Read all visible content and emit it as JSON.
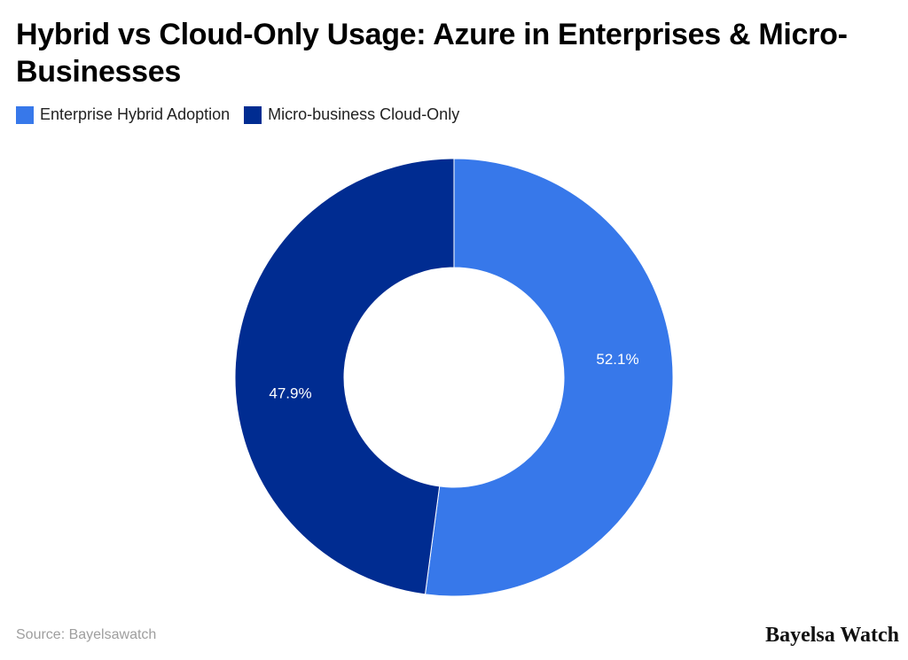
{
  "title": "Hybrid vs Cloud-Only Usage: Azure in Enterprises & Micro-Businesses",
  "legend": [
    {
      "label": "Enterprise Hybrid Adoption",
      "color": "#3778ea"
    },
    {
      "label": "Micro-business Cloud-Only",
      "color": "#002c91"
    }
  ],
  "source": "Source: Bayelsawatch",
  "brand": "Bayelsa Watch",
  "chart_data": {
    "type": "pie",
    "variant": "donut",
    "title": "Hybrid vs Cloud-Only Usage: Azure in Enterprises & Micro-Businesses",
    "categories": [
      "Enterprise Hybrid Adoption",
      "Micro-business Cloud-Only"
    ],
    "values": [
      52.1,
      47.9
    ],
    "data_labels": [
      "52.1%",
      "47.9%"
    ],
    "colors": [
      "#3778ea",
      "#002c91"
    ],
    "legend_position": "top-left"
  }
}
